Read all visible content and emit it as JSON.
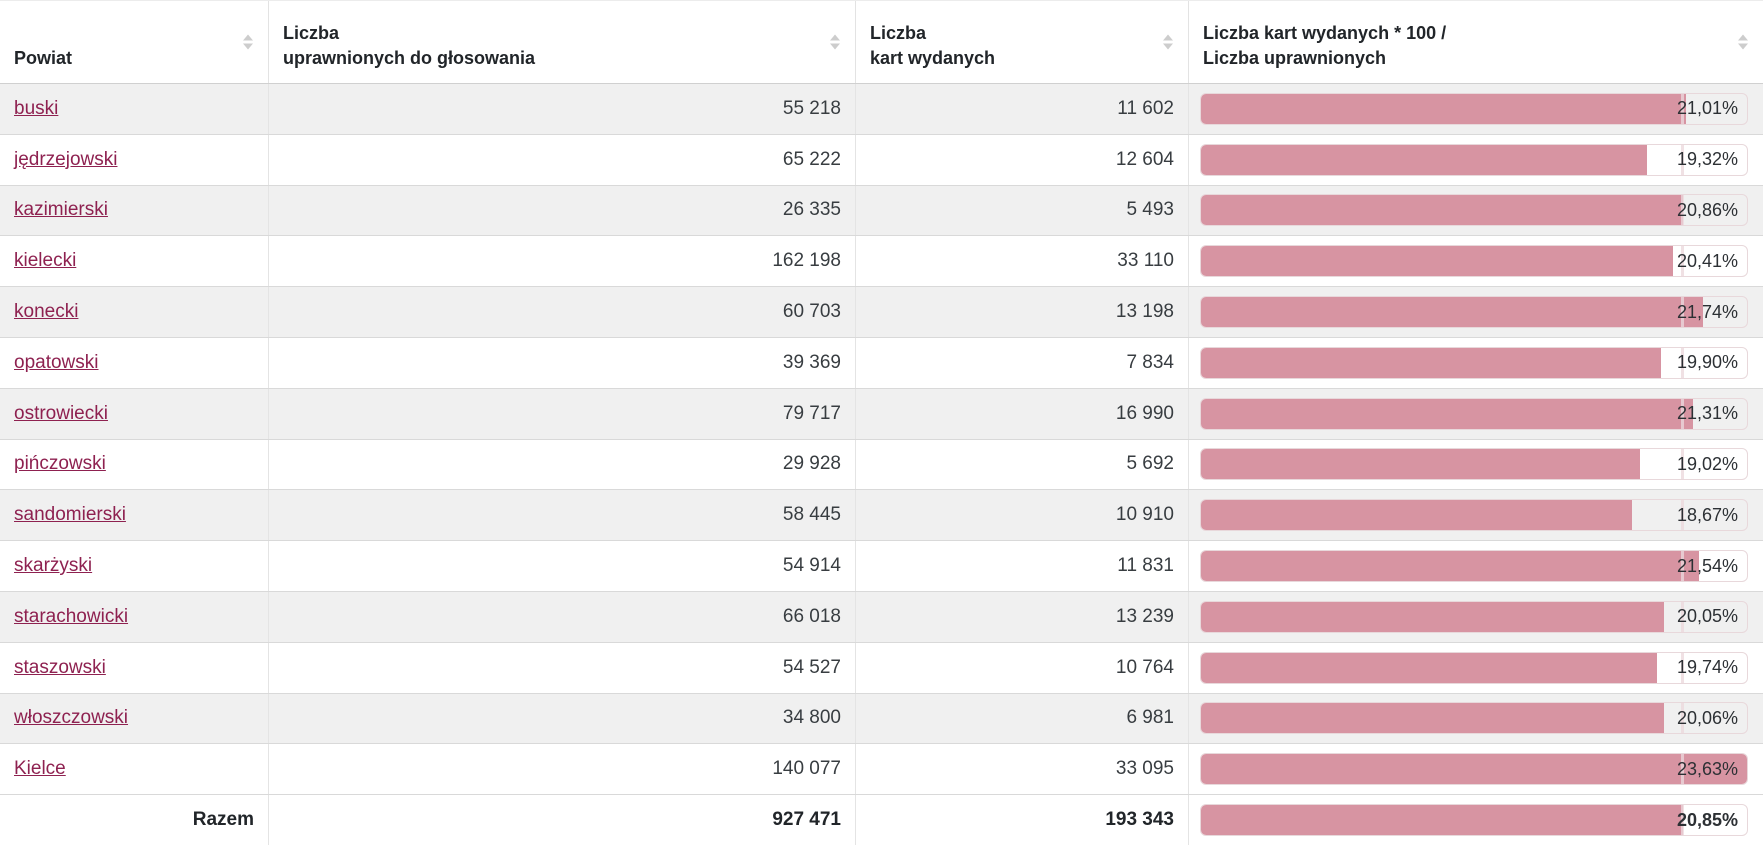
{
  "table": {
    "columns": [
      {
        "id": "powiat",
        "label_lines": [
          "Powiat"
        ],
        "sortable": true
      },
      {
        "id": "eligible",
        "label_lines": [
          "Liczba",
          "uprawnionych do głosowania"
        ],
        "sortable": true
      },
      {
        "id": "cards",
        "label_lines": [
          "Liczba",
          "kart wydanych"
        ],
        "sortable": true
      },
      {
        "id": "ratio",
        "label_lines": [
          "Liczba kart wydanych * 100 /",
          "Liczba uprawnionych"
        ],
        "sortable": true
      }
    ],
    "rows": [
      {
        "powiat": "buski",
        "eligible": "55 218",
        "cards": "11 602",
        "pct_label": "21,01%",
        "pct": 21.01,
        "link": true,
        "striped": true,
        "total": false
      },
      {
        "powiat": "jędrzejowski",
        "eligible": "65 222",
        "cards": "12 604",
        "pct_label": "19,32%",
        "pct": 19.32,
        "link": true,
        "striped": false,
        "total": false
      },
      {
        "powiat": "kazimierski",
        "eligible": "26 335",
        "cards": "5 493",
        "pct_label": "20,86%",
        "pct": 20.86,
        "link": true,
        "striped": true,
        "total": false
      },
      {
        "powiat": "kielecki",
        "eligible": "162 198",
        "cards": "33 110",
        "pct_label": "20,41%",
        "pct": 20.41,
        "link": true,
        "striped": false,
        "total": false
      },
      {
        "powiat": "konecki",
        "eligible": "60 703",
        "cards": "13 198",
        "pct_label": "21,74%",
        "pct": 21.74,
        "link": true,
        "striped": true,
        "total": false
      },
      {
        "powiat": "opatowski",
        "eligible": "39 369",
        "cards": "7 834",
        "pct_label": "19,90%",
        "pct": 19.9,
        "link": true,
        "striped": false,
        "total": false
      },
      {
        "powiat": "ostrowiecki",
        "eligible": "79 717",
        "cards": "16 990",
        "pct_label": "21,31%",
        "pct": 21.31,
        "link": true,
        "striped": true,
        "total": false
      },
      {
        "powiat": "pińczowski",
        "eligible": "29 928",
        "cards": "5 692",
        "pct_label": "19,02%",
        "pct": 19.02,
        "link": true,
        "striped": false,
        "total": false
      },
      {
        "powiat": "sandomierski",
        "eligible": "58 445",
        "cards": "10 910",
        "pct_label": "18,67%",
        "pct": 18.67,
        "link": true,
        "striped": true,
        "total": false
      },
      {
        "powiat": "skarżyski",
        "eligible": "54 914",
        "cards": "11 831",
        "pct_label": "21,54%",
        "pct": 21.54,
        "link": true,
        "striped": false,
        "total": false
      },
      {
        "powiat": "starachowicki",
        "eligible": "66 018",
        "cards": "13 239",
        "pct_label": "20,05%",
        "pct": 20.05,
        "link": true,
        "striped": true,
        "total": false
      },
      {
        "powiat": "staszowski",
        "eligible": "54 527",
        "cards": "10 764",
        "pct_label": "19,74%",
        "pct": 19.74,
        "link": true,
        "striped": false,
        "total": false
      },
      {
        "powiat": "włoszczowski",
        "eligible": "34 800",
        "cards": "6 981",
        "pct_label": "20,06%",
        "pct": 20.06,
        "link": true,
        "striped": true,
        "total": false
      },
      {
        "powiat": "Kielce",
        "eligible": "140 077",
        "cards": "33 095",
        "pct_label": "23,63%",
        "pct": 23.63,
        "link": true,
        "striped": false,
        "total": false
      },
      {
        "powiat": "Razem",
        "eligible": "927 471",
        "cards": "193 343",
        "pct_label": "20,85%",
        "pct": 20.85,
        "link": false,
        "striped": false,
        "total": true
      }
    ],
    "bar": {
      "scale_max": 23.63,
      "marker_value": 20.85,
      "fill_color": "#d794a2",
      "track_border_color": "#e8d8db"
    },
    "colors": {
      "link": "#8e2150",
      "stripe": "#f0f0f0",
      "text": "#383d41",
      "header_text": "#212529",
      "sort_icon": "#cdcdcd"
    }
  }
}
